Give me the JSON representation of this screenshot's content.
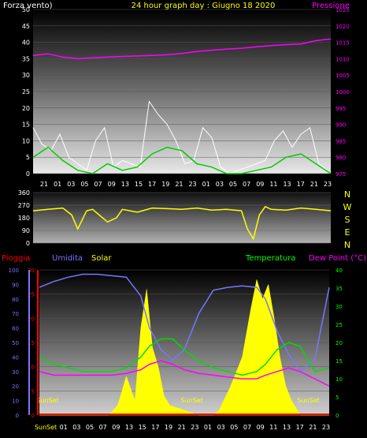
{
  "header": {
    "wind_label": "Forza vento)",
    "title": "24 hour graph day : Giugno 18 2020",
    "pressure_label": "Pressione"
  },
  "bottom_header": {
    "rain_label": "Pioggia",
    "humidity_label": "Umidita",
    "solar_label": "Solar",
    "temp_label": "Temperatura",
    "dew_label": "Dew Point (°C)"
  },
  "colors": {
    "wind_axis": "#ffffff",
    "title": "#ffff00",
    "pressure": "#ff00ff",
    "rain": "#ff0000",
    "humidity": "#7777ff",
    "solar": "#ffff00",
    "temp": "#00ff00",
    "dew": "#ff00ff",
    "gust": "#ffffff",
    "wind_avg": "#00cc00",
    "direction": "#ffff00"
  },
  "chart_data": [
    {
      "type": "line",
      "name": "wind-pressure",
      "x_ticks": [
        "21",
        "01",
        "03",
        "05",
        "07",
        "09",
        "13",
        "15",
        "17",
        "19",
        "21",
        "23",
        "01",
        "03",
        "05",
        "07",
        "09",
        "11",
        "13",
        "17",
        "21",
        "23"
      ],
      "left_axis": {
        "ticks": [
          0,
          5,
          10,
          15,
          20,
          25,
          30,
          35,
          40,
          45,
          50
        ],
        "ylim": [
          0,
          50
        ]
      },
      "right_axis": {
        "ticks": [
          975,
          980,
          985,
          990,
          995,
          1000,
          1005,
          1010,
          1015,
          1020,
          1025
        ],
        "ylim": [
          975,
          1025
        ]
      },
      "pressure": {
        "x": [
          0,
          0.05,
          0.1,
          0.15,
          0.2,
          0.3,
          0.4,
          0.45,
          0.5,
          0.55,
          0.6,
          0.65,
          0.7,
          0.75,
          0.8,
          0.85,
          0.9,
          0.95,
          1.0
        ],
        "values": [
          1011,
          1011.5,
          1010.5,
          1010,
          1010.3,
          1010.7,
          1011,
          1011.2,
          1011.6,
          1012.2,
          1012.6,
          1012.9,
          1013.2,
          1013.6,
          1014,
          1014.3,
          1014.5,
          1015.5,
          1016
        ]
      },
      "wind_gust": {
        "x": [
          0,
          0.03,
          0.06,
          0.09,
          0.12,
          0.15,
          0.18,
          0.21,
          0.24,
          0.27,
          0.3,
          0.33,
          0.36,
          0.39,
          0.42,
          0.45,
          0.48,
          0.51,
          0.54,
          0.57,
          0.6,
          0.63,
          0.66,
          0.69,
          0.72,
          0.75,
          0.78,
          0.81,
          0.84,
          0.87,
          0.9,
          0.93,
          0.96,
          1.0
        ],
        "values": [
          14,
          9,
          7,
          12,
          5,
          3,
          1,
          10,
          14,
          2,
          4,
          3,
          2,
          22,
          18,
          15,
          10,
          3,
          4,
          14,
          11,
          2,
          0,
          1,
          2,
          3,
          4,
          10,
          13,
          8,
          12,
          14,
          3,
          0
        ]
      },
      "wind_avg": {
        "x": [
          0,
          0.05,
          0.1,
          0.15,
          0.2,
          0.25,
          0.3,
          0.35,
          0.4,
          0.45,
          0.5,
          0.55,
          0.6,
          0.65,
          0.7,
          0.75,
          0.8,
          0.85,
          0.9,
          0.95,
          1.0
        ],
        "values": [
          5,
          8,
          4,
          1,
          0,
          3,
          1,
          2,
          6,
          8,
          7,
          3,
          2,
          0,
          0,
          1,
          2,
          5,
          6,
          3,
          0
        ]
      }
    },
    {
      "type": "line",
      "name": "wind-direction",
      "y_ticks": [
        0,
        90,
        180,
        270,
        360
      ],
      "ylim": [
        0,
        360
      ],
      "compass_labels": [
        "N",
        "W",
        "S",
        "E",
        "N"
      ],
      "direction": {
        "x": [
          0,
          0.05,
          0.1,
          0.13,
          0.15,
          0.18,
          0.2,
          0.25,
          0.28,
          0.3,
          0.35,
          0.4,
          0.45,
          0.5,
          0.55,
          0.6,
          0.65,
          0.7,
          0.72,
          0.74,
          0.76,
          0.78,
          0.8,
          0.85,
          0.9,
          0.95,
          1.0
        ],
        "values": [
          230,
          240,
          250,
          200,
          100,
          230,
          240,
          150,
          180,
          240,
          220,
          250,
          245,
          240,
          250,
          235,
          240,
          230,
          100,
          30,
          200,
          260,
          240,
          235,
          250,
          240,
          230
        ]
      }
    },
    {
      "type": "area",
      "name": "rain-humidity-solar-temp-dew",
      "x_ticks": [
        "21",
        "01",
        "03",
        "05",
        "07",
        "09",
        "13",
        "15",
        "17",
        "19",
        "21",
        "23",
        "01",
        "03",
        "05",
        "07",
        "09",
        "11",
        "13",
        "17",
        "21",
        "23"
      ],
      "x_tick_left": "SunSet",
      "sunset_labels": [
        "SunSet",
        "SunSet",
        "SunSet"
      ],
      "humidity_axis": {
        "ticks": [
          0,
          10,
          20,
          30,
          40,
          50,
          60,
          70,
          80,
          90,
          100
        ],
        "ylim": [
          0,
          100
        ]
      },
      "rain_axis": {
        "ticks": [
          0,
          5,
          10,
          15,
          20,
          25,
          30
        ],
        "ylim": [
          0,
          30
        ]
      },
      "temp_axis": {
        "ticks": [
          0,
          5,
          10,
          15,
          20,
          25,
          30,
          35,
          40
        ],
        "ylim": [
          0,
          40
        ]
      },
      "humidity": {
        "x": [
          0,
          0.05,
          0.1,
          0.15,
          0.2,
          0.25,
          0.3,
          0.35,
          0.38,
          0.42,
          0.46,
          0.5,
          0.55,
          0.6,
          0.65,
          0.7,
          0.75,
          0.78,
          0.82,
          0.86,
          0.9,
          0.95,
          1.0
        ],
        "values": [
          88,
          92,
          95,
          97,
          97,
          96,
          95,
          82,
          60,
          45,
          38,
          45,
          70,
          86,
          88,
          89,
          88,
          80,
          58,
          42,
          30,
          38,
          88
        ]
      },
      "temperature": {
        "x": [
          0,
          0.05,
          0.1,
          0.15,
          0.2,
          0.25,
          0.3,
          0.35,
          0.38,
          0.42,
          0.46,
          0.5,
          0.55,
          0.6,
          0.65,
          0.7,
          0.75,
          0.78,
          0.82,
          0.86,
          0.9,
          0.95,
          1.0
        ],
        "values": [
          16,
          14,
          13,
          12,
          12,
          12,
          13,
          16,
          19,
          21,
          21,
          18,
          15,
          13,
          12,
          11,
          12,
          14,
          18,
          20,
          19,
          12,
          13
        ]
      },
      "dew_point": {
        "x": [
          0,
          0.05,
          0.1,
          0.15,
          0.2,
          0.25,
          0.3,
          0.35,
          0.38,
          0.42,
          0.46,
          0.5,
          0.55,
          0.6,
          0.65,
          0.7,
          0.75,
          0.78,
          0.82,
          0.86,
          0.9,
          0.95,
          1.0
        ],
        "values": [
          12,
          11,
          11,
          11,
          11,
          11,
          11.5,
          12.5,
          14,
          15,
          14,
          12.5,
          11.5,
          11,
          10.5,
          10,
          10,
          11,
          12,
          13,
          12,
          10,
          8
        ]
      },
      "solar": {
        "x": [
          0,
          0.2,
          0.24,
          0.27,
          0.3,
          0.33,
          0.35,
          0.37,
          0.39,
          0.41,
          0.43,
          0.45,
          0.5,
          0.55,
          0.6,
          0.62,
          0.66,
          0.7,
          0.73,
          0.75,
          0.77,
          0.79,
          0.81,
          0.83,
          0.85,
          0.87,
          0.9,
          1.0
        ],
        "values": [
          0,
          0,
          0,
          2,
          8,
          3,
          18,
          26,
          14,
          10,
          4,
          2,
          1,
          0,
          0,
          1,
          6,
          12,
          22,
          28,
          24,
          27,
          20,
          12,
          6,
          3,
          0,
          0
        ]
      },
      "rain": {
        "x": [
          0,
          1
        ],
        "values": [
          0,
          0
        ]
      }
    }
  ]
}
